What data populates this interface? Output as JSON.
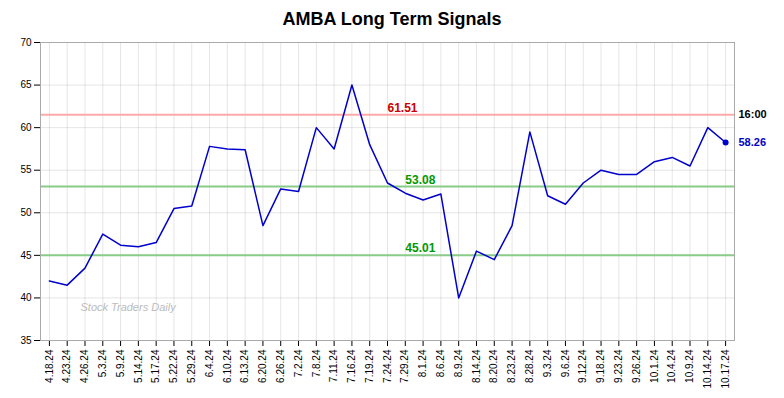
{
  "chart_data": {
    "type": "line",
    "title": "AMBA Long Term Signals",
    "categories": [
      "4.18.24",
      "4.23.24",
      "4.26.24",
      "5.3.24",
      "5.9.24",
      "5.14.24",
      "5.17.24",
      "5.22.24",
      "5.29.24",
      "6.4.24",
      "6.10.24",
      "6.13.24",
      "6.20.24",
      "6.26.24",
      "7.2.24",
      "7.8.24",
      "7.11.24",
      "7.16.24",
      "7.19.24",
      "7.24.24",
      "7.29.24",
      "8.1.24",
      "8.6.24",
      "8.9.24",
      "8.14.24",
      "8.20.24",
      "8.23.24",
      "8.28.24",
      "9.3.24",
      "9.6.24",
      "9.12.24",
      "9.18.24",
      "9.23.24",
      "9.26.24",
      "10.1.24",
      "10.4.24",
      "10.9.24",
      "10.14.24",
      "10.17.24"
    ],
    "values": [
      42.0,
      41.5,
      43.5,
      47.5,
      46.2,
      46.0,
      46.5,
      50.5,
      50.8,
      57.8,
      57.5,
      57.4,
      48.5,
      52.8,
      52.5,
      60.0,
      57.5,
      65.0,
      58.0,
      53.5,
      52.3,
      51.5,
      52.2,
      40.0,
      45.5,
      44.5,
      48.5,
      59.5,
      52.0,
      51.0,
      53.5,
      55.0,
      54.5,
      54.5,
      56.0,
      56.5,
      55.5,
      60.0,
      58.26
    ],
    "color": "#0000cc",
    "ylim": [
      35,
      70
    ],
    "yticks": [
      35,
      40,
      45,
      50,
      55,
      60,
      65,
      70
    ],
    "grid": true,
    "reference_lines": [
      {
        "value": 61.51,
        "color": "#ffaaaa",
        "label": "61.51",
        "label_color": "#cc0000"
      },
      {
        "value": 53.08,
        "color": "#88cc88",
        "label": "53.08",
        "label_color": "#009900"
      },
      {
        "value": 45.01,
        "color": "#88cc88",
        "label": "45.01",
        "label_color": "#009900"
      }
    ],
    "annotations": [
      {
        "text": "Stock Traders Daily",
        "color": "#bbbbbb"
      }
    ],
    "end_labels": [
      {
        "text": "16:00",
        "y": 61.51,
        "color": "#000000"
      },
      {
        "text": "58.26",
        "y": 58.26,
        "color": "#0000cc",
        "marker": "circle"
      }
    ]
  }
}
